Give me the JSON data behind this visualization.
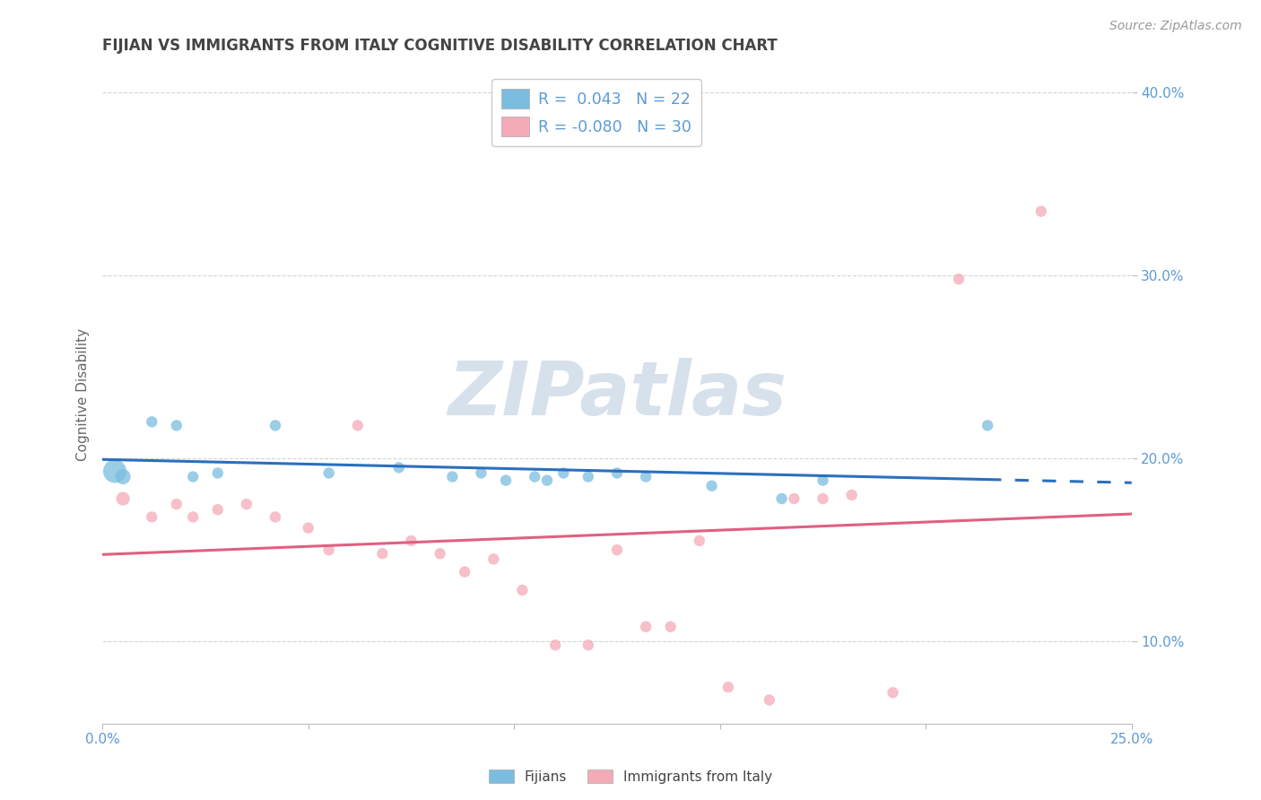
{
  "title": "FIJIAN VS IMMIGRANTS FROM ITALY COGNITIVE DISABILITY CORRELATION CHART",
  "source": "Source: ZipAtlas.com",
  "ylabel": "Cognitive Disability",
  "xlim": [
    0.0,
    0.25
  ],
  "ylim": [
    0.055,
    0.415
  ],
  "yticks": [
    0.1,
    0.2,
    0.3,
    0.4
  ],
  "ytick_labels": [
    "10.0%",
    "20.0%",
    "30.0%",
    "40.0%"
  ],
  "xticks": [
    0.0,
    0.05,
    0.1,
    0.15,
    0.2,
    0.25
  ],
  "xtick_labels": [
    "0.0%",
    "",
    "",
    "",
    "",
    "25.0%"
  ],
  "fijian_color": "#7abde0",
  "italy_color": "#f5aab8",
  "fijian_R": 0.043,
  "fijian_N": 22,
  "italy_R": -0.08,
  "italy_N": 30,
  "fijian_x": [
    0.003,
    0.005,
    0.012,
    0.018,
    0.022,
    0.028,
    0.042,
    0.055,
    0.072,
    0.085,
    0.092,
    0.098,
    0.105,
    0.108,
    0.112,
    0.118,
    0.125,
    0.132,
    0.148,
    0.165,
    0.175,
    0.215
  ],
  "fijian_y": [
    0.193,
    0.19,
    0.22,
    0.218,
    0.19,
    0.192,
    0.218,
    0.192,
    0.195,
    0.19,
    0.192,
    0.188,
    0.19,
    0.188,
    0.192,
    0.19,
    0.192,
    0.19,
    0.185,
    0.178,
    0.188,
    0.218
  ],
  "fijian_sizes": [
    350,
    150,
    80,
    80,
    80,
    80,
    80,
    80,
    80,
    80,
    80,
    80,
    80,
    80,
    80,
    80,
    80,
    80,
    80,
    80,
    80,
    80
  ],
  "italy_x": [
    0.005,
    0.012,
    0.018,
    0.022,
    0.028,
    0.035,
    0.042,
    0.05,
    0.055,
    0.062,
    0.068,
    0.075,
    0.082,
    0.088,
    0.095,
    0.102,
    0.11,
    0.118,
    0.125,
    0.132,
    0.138,
    0.145,
    0.152,
    0.162,
    0.168,
    0.175,
    0.182,
    0.192,
    0.208,
    0.228
  ],
  "italy_y": [
    0.178,
    0.168,
    0.175,
    0.168,
    0.172,
    0.175,
    0.168,
    0.162,
    0.15,
    0.218,
    0.148,
    0.155,
    0.148,
    0.138,
    0.145,
    0.128,
    0.098,
    0.098,
    0.15,
    0.108,
    0.108,
    0.155,
    0.075,
    0.068,
    0.178,
    0.178,
    0.18,
    0.072,
    0.298,
    0.335
  ],
  "italy_sizes": [
    120,
    80,
    80,
    80,
    80,
    80,
    80,
    80,
    80,
    80,
    80,
    80,
    80,
    80,
    80,
    80,
    80,
    80,
    80,
    80,
    80,
    80,
    80,
    80,
    80,
    80,
    80,
    80,
    80,
    80
  ],
  "watermark_text": "ZIPatlas",
  "background_color": "#ffffff",
  "grid_color": "#d0d0d0",
  "title_color": "#444444",
  "axis_label_color": "#666666",
  "tick_color": "#5b9bd5",
  "fijian_line_color": "#2b6fbe",
  "italy_line_color": "#e06080",
  "legend_fijian_label": "R =  0.043   N = 22",
  "legend_italy_label": "R = -0.080   N = 30",
  "bottom_legend_fijian": "Fijians",
  "bottom_legend_italy": "Immigrants from Italy"
}
